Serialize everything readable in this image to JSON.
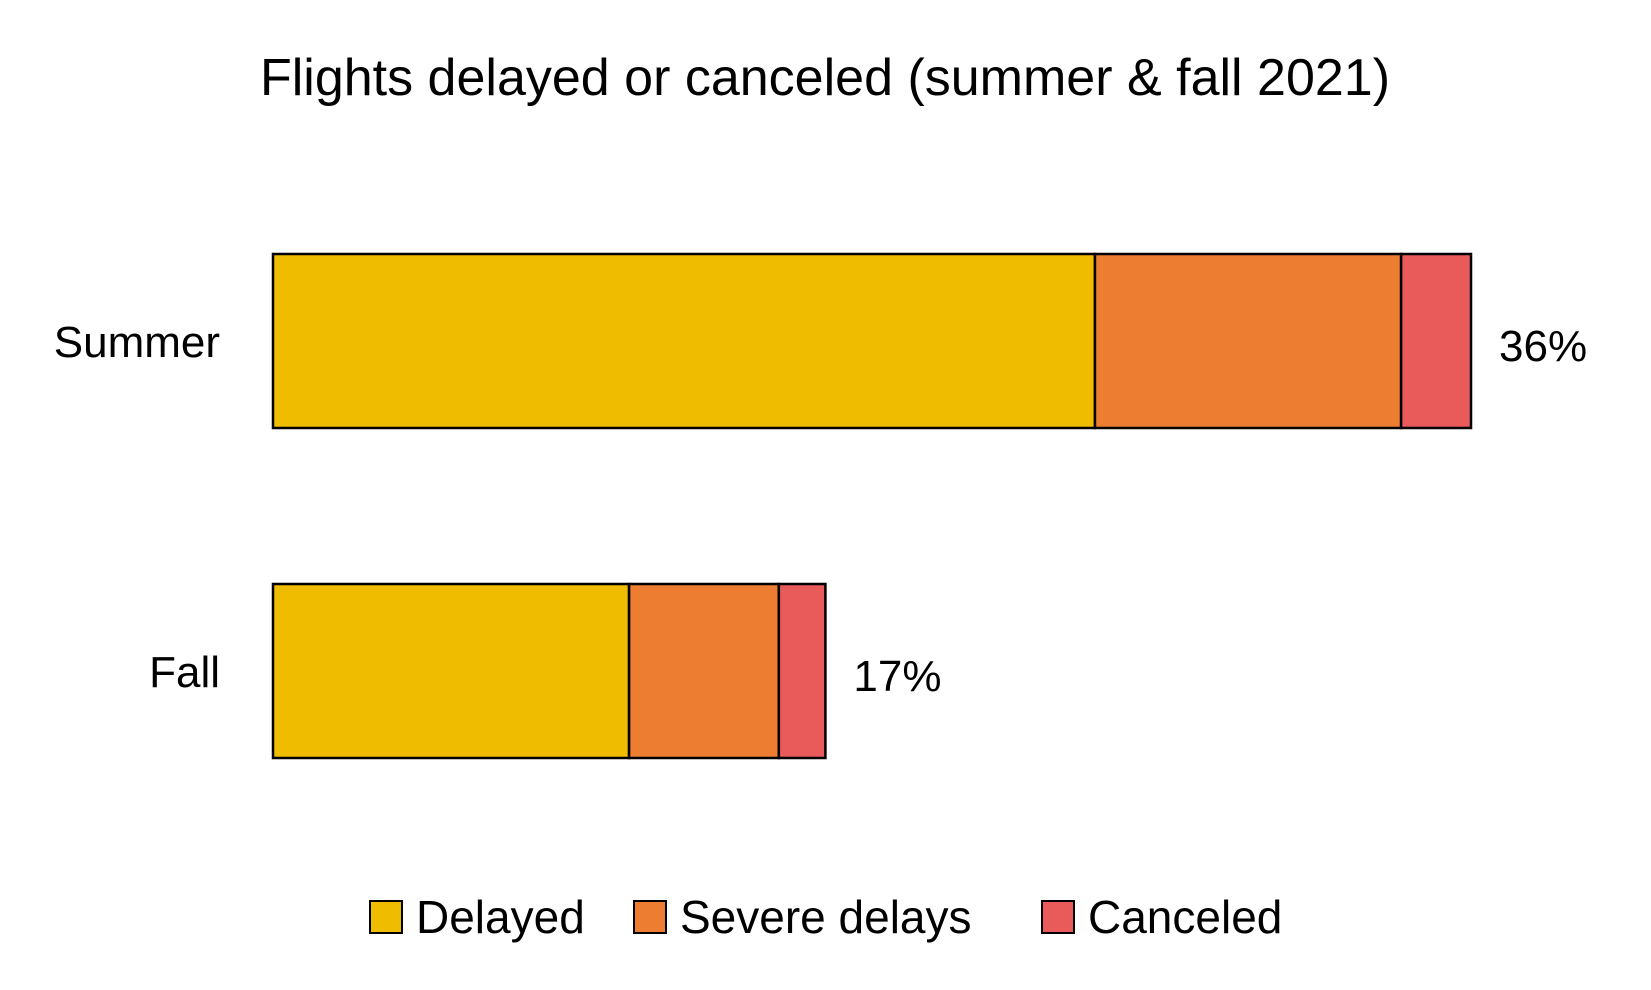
{
  "chart_data": {
    "type": "bar",
    "orientation": "horizontal",
    "stacked": true,
    "title": "Flights delayed or canceled (summer & fall 2021)",
    "categories": [
      "Summer",
      "Fall"
    ],
    "series": [
      {
        "name": "Delayed",
        "values": [
          24.7,
          10.7
        ],
        "color": "#F0BC00"
      },
      {
        "name": "Severe delays",
        "values": [
          9.2,
          4.5
        ],
        "color": "#ED7D31"
      },
      {
        "name": "Canceled",
        "values": [
          2.1,
          1.4
        ],
        "color": "#E95B5B"
      }
    ],
    "totals": [
      "36%",
      "17%"
    ],
    "xlim": [
      0,
      36
    ],
    "grid": false,
    "axes_visible": false,
    "legend_placement": "bottom"
  }
}
